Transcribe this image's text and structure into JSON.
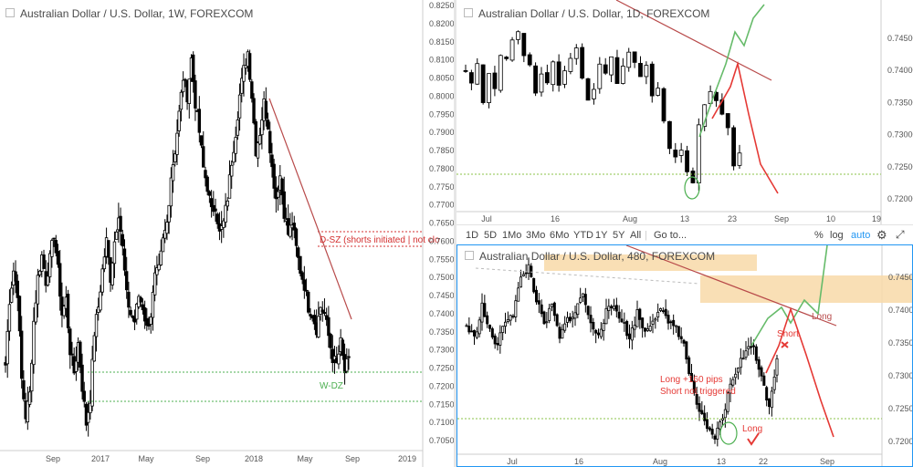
{
  "colors": {
    "up": "#ffffff",
    "down": "#000000",
    "trend": "#b84a4a",
    "green_zone": "#4caf50",
    "red_zone": "#d32f2f",
    "sketch_green": "#4caf50",
    "sketch_red": "#e53935",
    "supply_band": "#f8d9a8",
    "border_active": "#2196f3"
  },
  "left": {
    "title": "Australian Dollar / U.S. Dollar, 1W, FOREXCOM",
    "annotation_sz": "D-SZ (shorts initiated | not clo",
    "annotation_dz": "W-DZ",
    "y_labels": [
      "0.8250",
      "0.8200",
      "0.8150",
      "0.8100",
      "0.8050",
      "0.8000",
      "0.7950",
      "0.7900",
      "0.7850",
      "0.7800",
      "0.7750",
      "0.7700",
      "0.7650",
      "0.7600",
      "0.7550",
      "0.7500",
      "0.7450",
      "0.7400",
      "0.7350",
      "0.7300",
      "0.7250",
      "0.7200",
      "0.7150",
      "0.7100",
      "0.7050"
    ],
    "x_labels": [
      "Sep",
      "2017",
      "May",
      "Sep",
      "2018",
      "May",
      "Sep",
      "2019"
    ]
  },
  "top_right": {
    "title": "Australian Dollar / U.S. Dollar, 1D, FOREXCOM",
    "y_labels": [
      "0.74500",
      "0.74000",
      "0.73500",
      "0.73000",
      "0.72500",
      "0.72000"
    ],
    "x_labels": [
      "Jul",
      "16",
      "Aug",
      "13",
      "23",
      "Sep",
      "10",
      "19"
    ]
  },
  "toolbar": {
    "ranges": [
      "1D",
      "5D",
      "1Mo",
      "3Mo",
      "6Mo",
      "YTD",
      "1Y",
      "5Y",
      "All"
    ],
    "goto": "Go to...",
    "pct": "%",
    "log": "log",
    "auto": "auto",
    "settings_icon": "gear-icon",
    "expand_icon": "expand-icon"
  },
  "bottom_right": {
    "title": "Australian Dollar / U.S. Dollar, 480, FOREXCOM",
    "label_long_zone": "Long",
    "label_short": "Short",
    "label_long_bottom": "Long",
    "note_line1": "Long +160 pips",
    "note_line2": "Short not triggered",
    "y_labels": [
      "0.74500",
      "0.74000",
      "0.73500",
      "0.73000",
      "0.72500",
      "0.72000"
    ],
    "x_labels": [
      "Jul",
      "16",
      "Aug",
      "13",
      "22",
      "Sep"
    ]
  },
  "chart_data": [
    {
      "type": "candlestick",
      "timeframe": "1W",
      "title": "Australian Dollar / U.S. Dollar, 1W, FOREXCOM",
      "ylim": [
        0.7025,
        0.8262
      ],
      "y_ticks": [
        0.825,
        0.82,
        0.815,
        0.81,
        0.805,
        0.8,
        0.795,
        0.79,
        0.785,
        0.78,
        0.775,
        0.77,
        0.765,
        0.76,
        0.755,
        0.75,
        0.745,
        0.74,
        0.735,
        0.73,
        0.725,
        0.72,
        0.715,
        0.71,
        0.705
      ],
      "x_ticks": [
        "Sep",
        "2017",
        "May",
        "Sep",
        "2018",
        "May",
        "Sep",
        "2019"
      ],
      "path": [
        0.726,
        0.744,
        0.752,
        0.746,
        0.722,
        0.712,
        0.718,
        0.738,
        0.75,
        0.756,
        0.749,
        0.755,
        0.762,
        0.752,
        0.74,
        0.744,
        0.73,
        0.724,
        0.732,
        0.72,
        0.71,
        0.717,
        0.735,
        0.742,
        0.752,
        0.76,
        0.75,
        0.76,
        0.768,
        0.758,
        0.745,
        0.74,
        0.738,
        0.745,
        0.742,
        0.736,
        0.74,
        0.75,
        0.752,
        0.76,
        0.765,
        0.778,
        0.785,
        0.795,
        0.805,
        0.8,
        0.81,
        0.798,
        0.79,
        0.78,
        0.775,
        0.768,
        0.77,
        0.762,
        0.765,
        0.772,
        0.782,
        0.79,
        0.8,
        0.807,
        0.812,
        0.8,
        0.785,
        0.79,
        0.798,
        0.792,
        0.78,
        0.772,
        0.778,
        0.768,
        0.762,
        0.765,
        0.758,
        0.752,
        0.748,
        0.742,
        0.74,
        0.736,
        0.742,
        0.74,
        0.734,
        0.728,
        0.726,
        0.732,
        0.724,
        0.728
      ],
      "trendline": [
        [
          0.7993,
          "2018-Feb"
        ],
        [
          0.7387,
          "2018-Aug"
        ]
      ],
      "supply_zone": [
        0.7625,
        0.7595
      ],
      "demand_zone": [
        0.724,
        0.7158
      ]
    },
    {
      "type": "candlestick",
      "timeframe": "1D",
      "title": "Australian Dollar / U.S. Dollar, 1D, FOREXCOM",
      "ylim": [
        0.718,
        0.7505
      ],
      "y_ticks": [
        0.745,
        0.74,
        0.735,
        0.73,
        0.725,
        0.72
      ],
      "x_ticks": [
        "Jul",
        "16",
        "Aug",
        "13",
        "23",
        "Sep",
        "10",
        "19"
      ],
      "path": [
        0.74,
        0.738,
        0.741,
        0.735,
        0.739,
        0.737,
        0.742,
        0.741,
        0.744,
        0.746,
        0.742,
        0.74,
        0.736,
        0.739,
        0.738,
        0.741,
        0.737,
        0.74,
        0.741,
        0.743,
        0.738,
        0.735,
        0.737,
        0.741,
        0.739,
        0.742,
        0.738,
        0.74,
        0.743,
        0.741,
        0.739,
        0.74,
        0.736,
        0.737,
        0.732,
        0.728,
        0.726,
        0.727,
        0.724,
        0.722,
        0.731,
        0.734,
        0.736,
        0.735,
        0.733,
        0.731,
        0.725,
        0.727
      ],
      "support_level": 0.7235,
      "projection_green": [
        0.726,
        0.741,
        0.747,
        0.743,
        0.751
      ],
      "projection_red": [
        0.734,
        0.74,
        0.733,
        0.726,
        0.7205
      ]
    },
    {
      "type": "candlestick",
      "timeframe": "480",
      "title": "Australian Dollar / U.S. Dollar, 480, FOREXCOM",
      "ylim": [
        0.7185,
        0.7502
      ],
      "y_ticks": [
        0.745,
        0.74,
        0.735,
        0.73,
        0.725,
        0.72
      ],
      "x_ticks": [
        "Jul",
        "16",
        "Aug",
        "13",
        "22",
        "Sep"
      ],
      "support_level": 0.7237,
      "supply_zone": [
        0.7455,
        0.7415
      ],
      "top_supply_zone": [
        0.7488,
        0.7462
      ]
    }
  ]
}
